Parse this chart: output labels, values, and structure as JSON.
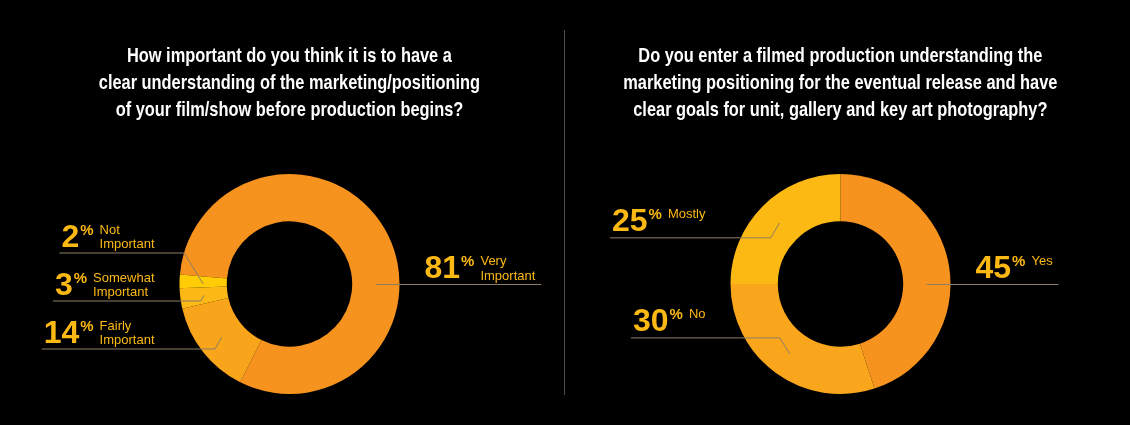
{
  "chart_data": [
    {
      "type": "donut",
      "title": "How important do you think it is to have a\nclear understanding of the marketing/positioning\nof your film/show before production begins?",
      "categories": [
        "Very Important",
        "Fairly Important",
        "Somewhat Important",
        "Not Important"
      ],
      "values": [
        81,
        14,
        3,
        2
      ],
      "value_labels": [
        "81%",
        "14%",
        "3%",
        "2%"
      ],
      "colors": [
        "#f6921e",
        "#f9a51c",
        "#fcb815",
        "#ffcc05"
      ]
    },
    {
      "type": "donut",
      "title": "Do you enter a filmed production understanding the\nmarketing positioning for the eventual release and have\nclear goals for unit, gallery and key art photography?",
      "categories": [
        "Yes",
        "No",
        "Mostly"
      ],
      "values": [
        45,
        30,
        25
      ],
      "value_labels": [
        "45%",
        "30%",
        "25%"
      ],
      "colors": [
        "#f6921e",
        "#f9a61c",
        "#fdb913"
      ]
    }
  ]
}
